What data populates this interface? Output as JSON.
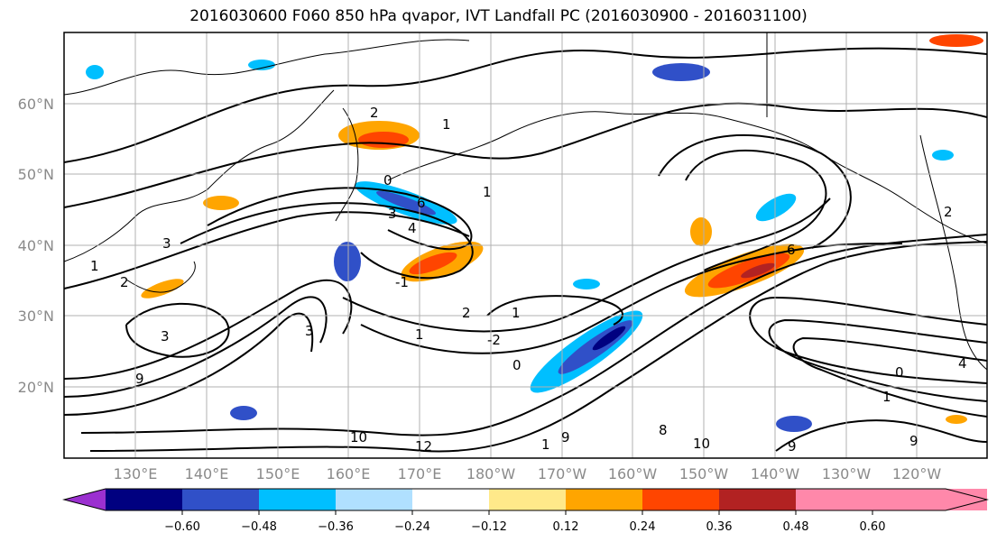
{
  "title": "2016030600 F060 850 hPa qvapor, IVT Landfall PC (2016030900 - 2016031100)",
  "lat_labels": [
    "60°N",
    "50°N",
    "40°N",
    "30°N",
    "20°N"
  ],
  "lon_labels": [
    "130°E",
    "140°E",
    "150°E",
    "160°E",
    "170°E",
    "180°W",
    "170°W",
    "160°W",
    "150°W",
    "140°W",
    "130°W",
    "120°W"
  ],
  "colorbar": {
    "ticks": [
      "−0.60",
      "−0.48",
      "−0.36",
      "−0.24",
      "−0.12",
      "0.12",
      "0.24",
      "0.36",
      "0.48",
      "0.60"
    ],
    "colors": [
      "#9b30d0",
      "#000080",
      "#3050c8",
      "#00bfff",
      "#b0e0ff",
      "#ffffff",
      "#ffe98a",
      "#ffa500",
      "#ff4500",
      "#b22222",
      "#ff88aa"
    ]
  },
  "contour_labels": [
    "1",
    "0",
    "1",
    "2",
    "3",
    "4",
    "6",
    "-1",
    "3",
    "1",
    "2",
    "3",
    "1",
    "-2",
    "0",
    "1",
    "2",
    "3",
    "9",
    "10",
    "12",
    "1",
    "9",
    "8",
    "10",
    "9",
    "6",
    "2",
    "0",
    "1",
    "4",
    "9"
  ]
}
